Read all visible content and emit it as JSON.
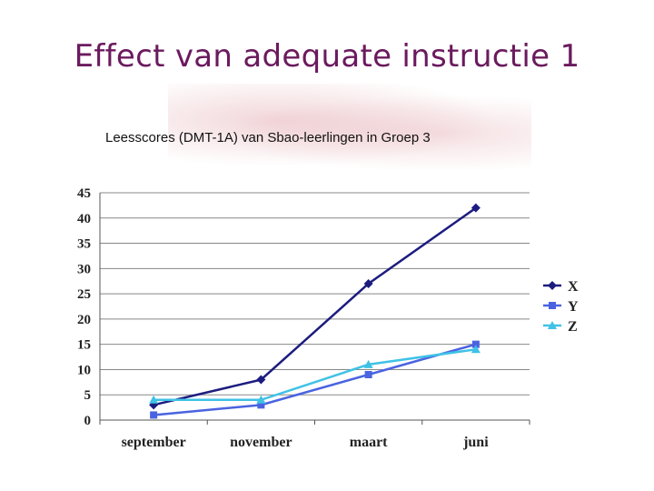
{
  "slide": {
    "title": "Effect van adequate instructie 1",
    "subtitle": "Leesscores (DMT-1A) van Sbao-leerlingen in Groep 3"
  },
  "chart_data": {
    "type": "line",
    "categories": [
      "september",
      "november",
      "maart",
      "juni"
    ],
    "series": [
      {
        "name": "X",
        "color": "#1c1c80",
        "marker": "diamond",
        "values": [
          3,
          8,
          27,
          42
        ]
      },
      {
        "name": "Y",
        "color": "#4a63e0",
        "marker": "square",
        "values": [
          1,
          3,
          9,
          15
        ]
      },
      {
        "name": "Z",
        "color": "#3fc2e6",
        "marker": "triangle",
        "values": [
          4,
          4,
          11,
          14
        ]
      }
    ],
    "yticks": [
      0,
      5,
      10,
      15,
      20,
      25,
      30,
      35,
      40,
      45
    ],
    "ylim": [
      0,
      45
    ],
    "grid": true,
    "legend": "right"
  }
}
